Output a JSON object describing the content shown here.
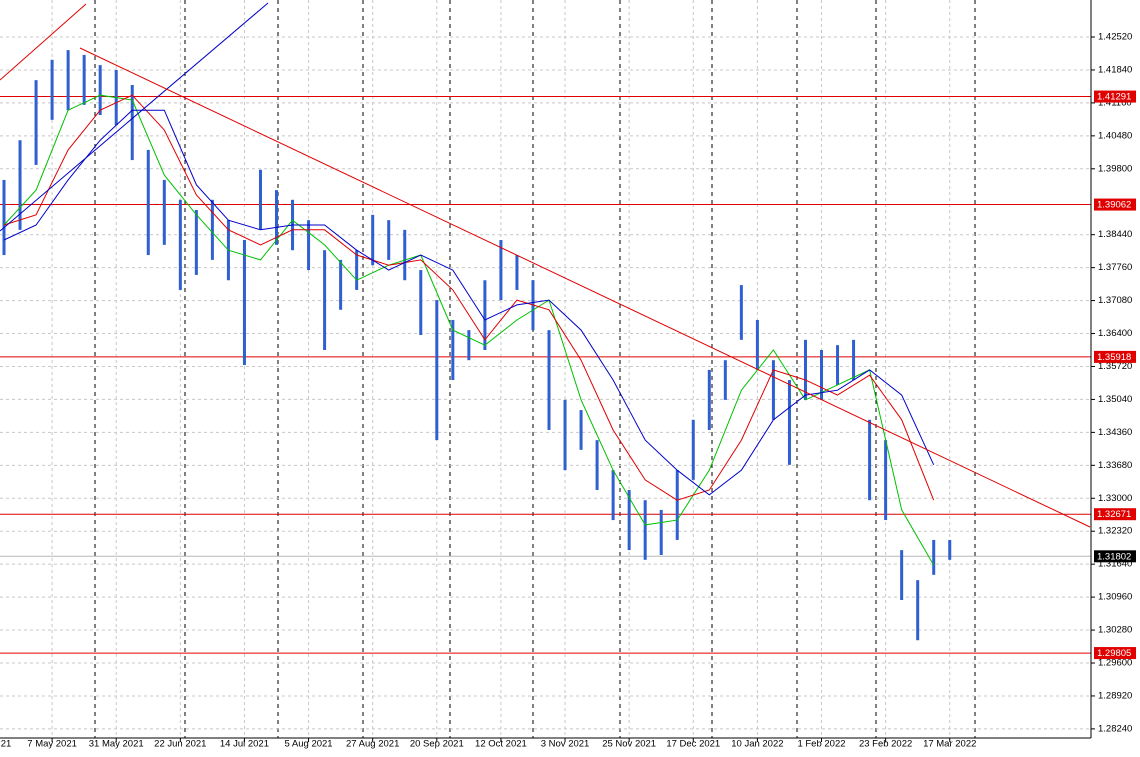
{
  "chart_data": {
    "type": "range_bar",
    "color": "#2f5fd0",
    "x": [
      "2021-04-21",
      "2021-04-27",
      "2021-05-03",
      "2021-05-07",
      "2021-05-13",
      "2021-05-19",
      "2021-05-25",
      "2021-05-31",
      "2021-06-04",
      "2021-06-10",
      "2021-06-16",
      "2021-06-22",
      "2021-06-28",
      "2021-07-02",
      "2021-07-08",
      "2021-07-14",
      "2021-07-20",
      "2021-07-26",
      "2021-07-30",
      "2021-08-05",
      "2021-08-11",
      "2021-08-17",
      "2021-08-23",
      "2021-08-27",
      "2021-09-02",
      "2021-09-08",
      "2021-09-14",
      "2021-09-20",
      "2021-09-24",
      "2021-09-30",
      "2021-10-06",
      "2021-10-12",
      "2021-10-18",
      "2021-10-22",
      "2021-10-28",
      "2021-11-03",
      "2021-11-09",
      "2021-11-15",
      "2021-11-19",
      "2021-11-25",
      "2021-12-01",
      "2021-12-07",
      "2021-12-13",
      "2021-12-17",
      "2021-12-23",
      "2021-12-29",
      "2022-01-04",
      "2022-01-10",
      "2022-01-14",
      "2022-01-20",
      "2022-01-26",
      "2022-02-01",
      "2022-02-07",
      "2022-02-11",
      "2022-02-17",
      "2022-02-23",
      "2022-03-01",
      "2022-03-07",
      "2022-03-11",
      "2022-03-17"
    ],
    "high": [
      1.3957,
      1.4039,
      1.4163,
      1.4205,
      1.4225,
      1.4215,
      1.4194,
      1.4184,
      1.4153,
      1.4019,
      1.3957,
      1.3916,
      1.3895,
      1.3916,
      1.3874,
      1.3833,
      1.3978,
      1.3936,
      1.3916,
      1.3874,
      1.3812,
      1.3792,
      1.3812,
      1.3885,
      1.3874,
      1.3854,
      1.3771,
      1.3709,
      1.3668,
      1.3647,
      1.375,
      1.3833,
      1.3802,
      1.375,
      1.3647,
      1.3503,
      1.3482,
      1.342,
      1.3358,
      1.3317,
      1.3296,
      1.3276,
      1.3358,
      1.3462,
      1.3565,
      1.3585,
      1.374,
      1.3668,
      1.3585,
      1.3544,
      1.3627,
      1.3606,
      1.3616,
      1.3627,
      1.3462,
      1.342,
      1.3193,
      1.3131,
      1.3214,
      1.3214
    ],
    "low": [
      1.3802,
      1.3854,
      1.3988,
      1.4081,
      1.4101,
      1.4112,
      1.4091,
      1.407,
      1.3998,
      1.3802,
      1.3823,
      1.373,
      1.3761,
      1.3792,
      1.375,
      1.3575,
      1.3854,
      1.3823,
      1.3812,
      1.3771,
      1.3606,
      1.3689,
      1.373,
      1.3781,
      1.3792,
      1.375,
      1.3637,
      1.342,
      1.3544,
      1.3585,
      1.3606,
      1.3709,
      1.373,
      1.3647,
      1.3441,
      1.3358,
      1.34,
      1.3317,
      1.3255,
      1.3193,
      1.3173,
      1.3183,
      1.3214,
      1.3338,
      1.3441,
      1.3503,
      1.3627,
      1.3565,
      1.3462,
      1.3369,
      1.3503,
      1.3503,
      1.3534,
      1.3544,
      1.3296,
      1.3255,
      1.309,
      1.3007,
      1.3142,
      1.3173
    ],
    "overlays": [
      {
        "color": "#00c000",
        "x": [
          "2021-04-21",
          "2021-05-03",
          "2021-05-13",
          "2021-05-25",
          "2021-06-04",
          "2021-06-16",
          "2021-06-28",
          "2021-07-08",
          "2021-07-20",
          "2021-07-30",
          "2021-08-11",
          "2021-08-23",
          "2021-09-02",
          "2021-09-14",
          "2021-09-24",
          "2021-10-06",
          "2021-10-18",
          "2021-10-28",
          "2021-11-09",
          "2021-11-19",
          "2021-12-01",
          "2021-12-13",
          "2021-12-23",
          "2022-01-04",
          "2022-01-14",
          "2022-01-26",
          "2022-02-07",
          "2022-02-17",
          "2022-03-01",
          "2022-03-11"
        ],
        "values": [
          1.3864,
          1.3936,
          1.4101,
          1.4132,
          1.4122,
          1.3967,
          1.3885,
          1.3812,
          1.3792,
          1.3874,
          1.3823,
          1.375,
          1.3781,
          1.3802,
          1.3647,
          1.3616,
          1.3668,
          1.3709,
          1.3503,
          1.3358,
          1.3245,
          1.3255,
          1.3358,
          1.3523,
          1.3606,
          1.3503,
          1.3534,
          1.3565,
          1.3276,
          1.3162
        ]
      },
      {
        "color": "#e00000",
        "x": [
          "2021-04-21",
          "2021-05-03",
          "2021-05-13",
          "2021-05-25",
          "2021-06-04",
          "2021-06-16",
          "2021-06-28",
          "2021-07-08",
          "2021-07-20",
          "2021-07-30",
          "2021-08-11",
          "2021-08-23",
          "2021-09-02",
          "2021-09-14",
          "2021-09-24",
          "2021-10-06",
          "2021-10-18",
          "2021-10-28",
          "2021-11-09",
          "2021-11-19",
          "2021-12-01",
          "2021-12-13",
          "2021-12-23",
          "2022-01-04",
          "2022-01-14",
          "2022-01-26",
          "2022-02-07",
          "2022-02-17",
          "2022-03-01",
          "2022-03-11"
        ],
        "values": [
          1.3864,
          1.3885,
          1.4019,
          1.4101,
          1.4132,
          1.406,
          1.3926,
          1.3854,
          1.3823,
          1.3854,
          1.3854,
          1.3802,
          1.3781,
          1.3792,
          1.373,
          1.3627,
          1.3709,
          1.3689,
          1.3585,
          1.3441,
          1.3338,
          1.3296,
          1.3317,
          1.342,
          1.3565,
          1.3544,
          1.3513,
          1.3554,
          1.3462,
          1.3296
        ]
      },
      {
        "color": "#0000c8",
        "x": [
          "2021-04-21",
          "2021-05-03",
          "2021-05-13",
          "2021-05-25",
          "2021-06-04",
          "2021-06-16",
          "2021-06-28",
          "2021-07-08",
          "2021-07-20",
          "2021-07-30",
          "2021-08-11",
          "2021-08-23",
          "2021-09-02",
          "2021-09-14",
          "2021-09-24",
          "2021-10-06",
          "2021-10-18",
          "2021-10-28",
          "2021-11-09",
          "2021-11-19",
          "2021-12-01",
          "2021-12-13",
          "2021-12-23",
          "2022-01-04",
          "2022-01-14",
          "2022-01-26",
          "2022-02-07",
          "2022-02-17",
          "2022-03-01",
          "2022-03-11"
        ],
        "values": [
          1.3833,
          1.3864,
          1.3957,
          1.4039,
          1.4101,
          1.4101,
          1.3947,
          1.3874,
          1.3854,
          1.3864,
          1.3864,
          1.3812,
          1.3771,
          1.3802,
          1.3771,
          1.3668,
          1.3699,
          1.3709,
          1.3647,
          1.3544,
          1.342,
          1.3358,
          1.3307,
          1.3358,
          1.3462,
          1.3513,
          1.3523,
          1.3565,
          1.3513,
          1.3369
        ]
      }
    ],
    "levels": [
      1.41291,
      1.39062,
      1.35918,
      1.32671,
      1.29805
    ],
    "level_color": "#e00000",
    "current_price": 1.31802,
    "xlim": [
      "2021-04-20",
      "2022-05-05"
    ],
    "ylim": [
      1.28052,
      1.43284
    ],
    "yticks": [
      {
        "value": 1.4252,
        "label": "1.42520"
      },
      {
        "value": 1.4184,
        "label": "1.41840"
      },
      {
        "value": 1.4116,
        "label": "1.41160"
      },
      {
        "value": 1.4048,
        "label": "1.40480"
      },
      {
        "value": 1.398,
        "label": "1.39800"
      },
      {
        "value": 1.3844,
        "label": "1.38440"
      },
      {
        "value": 1.3776,
        "label": "1.37760"
      },
      {
        "value": 1.3708,
        "label": "1.37080"
      },
      {
        "value": 1.364,
        "label": "1.36400"
      },
      {
        "value": 1.3572,
        "label": "1.35720"
      },
      {
        "value": 1.3504,
        "label": "1.35040"
      },
      {
        "value": 1.3436,
        "label": "1.34360"
      },
      {
        "value": 1.3368,
        "label": "1.33680"
      },
      {
        "value": 1.33,
        "label": "1.33000"
      },
      {
        "value": 1.3232,
        "label": "1.32320"
      },
      {
        "value": 1.3164,
        "label": "1.31640"
      },
      {
        "value": 1.3096,
        "label": "1.30960"
      },
      {
        "value": 1.3028,
        "label": "1.30280"
      },
      {
        "value": 1.296,
        "label": "1.29600"
      },
      {
        "value": 1.2892,
        "label": "1.28920"
      },
      {
        "value": 1.2824,
        "label": "1.28240"
      }
    ],
    "xticks": [
      {
        "value": "2021-04-15",
        "label": "21"
      },
      {
        "value": "2021-05-07",
        "label": "7 May 2021"
      },
      {
        "value": "2021-05-31",
        "label": "31 May 2021"
      },
      {
        "value": "2021-06-22",
        "label": "22 Jun 2021"
      },
      {
        "value": "2021-07-14",
        "label": "14 Jul 2021"
      },
      {
        "value": "2021-08-05",
        "label": "5 Aug 2021"
      },
      {
        "value": "2021-08-27",
        "label": "27 Aug 2021"
      },
      {
        "value": "2021-09-20",
        "label": "20 Sep 2021"
      },
      {
        "value": "2021-10-12",
        "label": "12 Oct 2021"
      },
      {
        "value": "2021-11-03",
        "label": "3 Nov 2021"
      },
      {
        "value": "2021-11-25",
        "label": "25 Nov 2021"
      },
      {
        "value": "2021-12-17",
        "label": "17 Dec 2021"
      },
      {
        "value": "2022-01-10",
        "label": "10 Jan 2022"
      },
      {
        "value": "2022-02-01",
        "label": "1 Feb 2022"
      },
      {
        "value": "2022-02-23",
        "label": "23 Feb 2022"
      },
      {
        "value": "2022-03-17",
        "label": "17 Mar 2022"
      }
    ],
    "grid": true
  }
}
